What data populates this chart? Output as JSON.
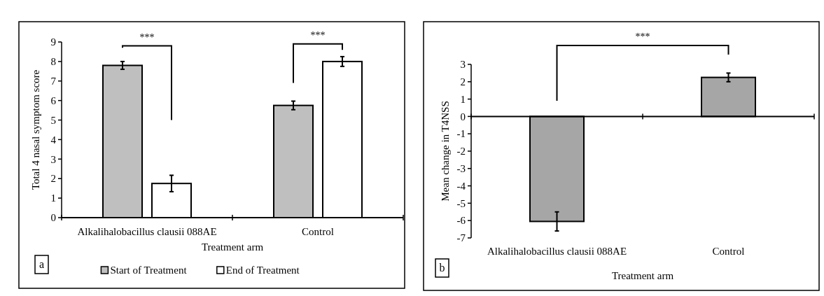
{
  "chart_data": [
    {
      "type": "bar",
      "xlabel": "Treatment arm",
      "ylabel": "Total 4 nasal symptom score",
      "categories": [
        "Alkalihalobacillus clausii 088AE",
        "Control"
      ],
      "series": [
        {
          "name": "Start of Treatment",
          "color": "#bfbfbf",
          "values": [
            7.8,
            5.75
          ],
          "errors": [
            0.2,
            0.22
          ]
        },
        {
          "name": "End of Treatment",
          "color": "#ffffff",
          "values": [
            1.75,
            8.0
          ],
          "errors": [
            0.42,
            0.25
          ]
        }
      ],
      "ylim": [
        0,
        9
      ],
      "yticks": [
        0,
        1,
        2,
        3,
        4,
        5,
        6,
        7,
        8,
        9
      ],
      "legend": "bottom",
      "annotations": [
        "***",
        "***",
        "a"
      ]
    },
    {
      "type": "bar",
      "xlabel": "Treatment arm",
      "ylabel": "Mean change in T4NSS",
      "categories": [
        "Alkalihalobacillus clausii 088AE",
        "Control"
      ],
      "series": [
        {
          "color": "#a6a6a6",
          "values": [
            -6.05,
            2.25
          ],
          "errors": [
            0.55,
            0.25
          ]
        }
      ],
      "ylim": [
        -7,
        3
      ],
      "yticks": [
        -7,
        -6,
        -5,
        -4,
        -3,
        -2,
        -1,
        0,
        1,
        2,
        3
      ],
      "annotations": [
        "***",
        "b"
      ]
    }
  ]
}
